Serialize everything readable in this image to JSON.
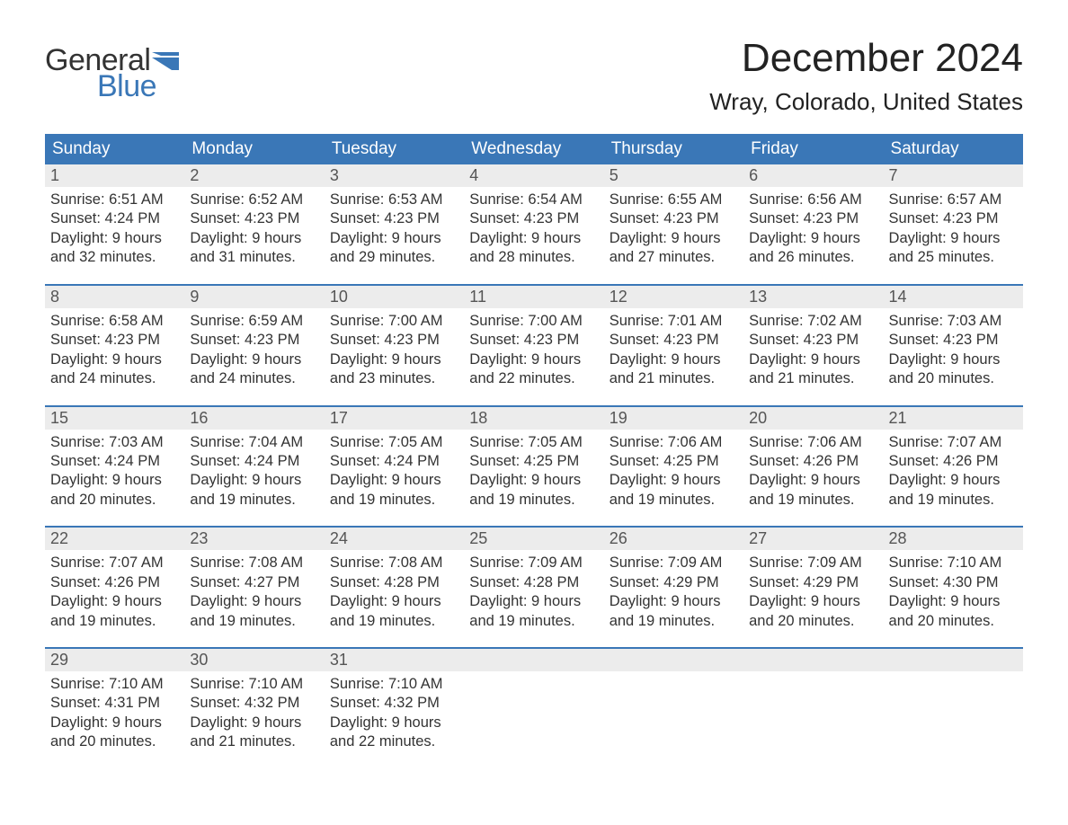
{
  "brand": {
    "word1": "General",
    "word2": "Blue",
    "accent_color": "#3a77b7"
  },
  "title": "December 2024",
  "location": "Wray, Colorado, United States",
  "colors": {
    "header_bg": "#3a77b7",
    "header_text": "#ffffff",
    "daynum_bg": "#ececec",
    "week_border": "#3a77b7",
    "text": "#333333",
    "background": "#ffffff"
  },
  "fonts": {
    "title_size": 44,
    "location_size": 26,
    "dayheader_size": 19,
    "body_size": 16.5
  },
  "day_labels": [
    "Sunday",
    "Monday",
    "Tuesday",
    "Wednesday",
    "Thursday",
    "Friday",
    "Saturday"
  ],
  "weeks": [
    [
      {
        "n": "1",
        "sr": "Sunrise: 6:51 AM",
        "ss": "Sunset: 4:24 PM",
        "d1": "Daylight: 9 hours",
        "d2": "and 32 minutes."
      },
      {
        "n": "2",
        "sr": "Sunrise: 6:52 AM",
        "ss": "Sunset: 4:23 PM",
        "d1": "Daylight: 9 hours",
        "d2": "and 31 minutes."
      },
      {
        "n": "3",
        "sr": "Sunrise: 6:53 AM",
        "ss": "Sunset: 4:23 PM",
        "d1": "Daylight: 9 hours",
        "d2": "and 29 minutes."
      },
      {
        "n": "4",
        "sr": "Sunrise: 6:54 AM",
        "ss": "Sunset: 4:23 PM",
        "d1": "Daylight: 9 hours",
        "d2": "and 28 minutes."
      },
      {
        "n": "5",
        "sr": "Sunrise: 6:55 AM",
        "ss": "Sunset: 4:23 PM",
        "d1": "Daylight: 9 hours",
        "d2": "and 27 minutes."
      },
      {
        "n": "6",
        "sr": "Sunrise: 6:56 AM",
        "ss": "Sunset: 4:23 PM",
        "d1": "Daylight: 9 hours",
        "d2": "and 26 minutes."
      },
      {
        "n": "7",
        "sr": "Sunrise: 6:57 AM",
        "ss": "Sunset: 4:23 PM",
        "d1": "Daylight: 9 hours",
        "d2": "and 25 minutes."
      }
    ],
    [
      {
        "n": "8",
        "sr": "Sunrise: 6:58 AM",
        "ss": "Sunset: 4:23 PM",
        "d1": "Daylight: 9 hours",
        "d2": "and 24 minutes."
      },
      {
        "n": "9",
        "sr": "Sunrise: 6:59 AM",
        "ss": "Sunset: 4:23 PM",
        "d1": "Daylight: 9 hours",
        "d2": "and 24 minutes."
      },
      {
        "n": "10",
        "sr": "Sunrise: 7:00 AM",
        "ss": "Sunset: 4:23 PM",
        "d1": "Daylight: 9 hours",
        "d2": "and 23 minutes."
      },
      {
        "n": "11",
        "sr": "Sunrise: 7:00 AM",
        "ss": "Sunset: 4:23 PM",
        "d1": "Daylight: 9 hours",
        "d2": "and 22 minutes."
      },
      {
        "n": "12",
        "sr": "Sunrise: 7:01 AM",
        "ss": "Sunset: 4:23 PM",
        "d1": "Daylight: 9 hours",
        "d2": "and 21 minutes."
      },
      {
        "n": "13",
        "sr": "Sunrise: 7:02 AM",
        "ss": "Sunset: 4:23 PM",
        "d1": "Daylight: 9 hours",
        "d2": "and 21 minutes."
      },
      {
        "n": "14",
        "sr": "Sunrise: 7:03 AM",
        "ss": "Sunset: 4:23 PM",
        "d1": "Daylight: 9 hours",
        "d2": "and 20 minutes."
      }
    ],
    [
      {
        "n": "15",
        "sr": "Sunrise: 7:03 AM",
        "ss": "Sunset: 4:24 PM",
        "d1": "Daylight: 9 hours",
        "d2": "and 20 minutes."
      },
      {
        "n": "16",
        "sr": "Sunrise: 7:04 AM",
        "ss": "Sunset: 4:24 PM",
        "d1": "Daylight: 9 hours",
        "d2": "and 19 minutes."
      },
      {
        "n": "17",
        "sr": "Sunrise: 7:05 AM",
        "ss": "Sunset: 4:24 PM",
        "d1": "Daylight: 9 hours",
        "d2": "and 19 minutes."
      },
      {
        "n": "18",
        "sr": "Sunrise: 7:05 AM",
        "ss": "Sunset: 4:25 PM",
        "d1": "Daylight: 9 hours",
        "d2": "and 19 minutes."
      },
      {
        "n": "19",
        "sr": "Sunrise: 7:06 AM",
        "ss": "Sunset: 4:25 PM",
        "d1": "Daylight: 9 hours",
        "d2": "and 19 minutes."
      },
      {
        "n": "20",
        "sr": "Sunrise: 7:06 AM",
        "ss": "Sunset: 4:26 PM",
        "d1": "Daylight: 9 hours",
        "d2": "and 19 minutes."
      },
      {
        "n": "21",
        "sr": "Sunrise: 7:07 AM",
        "ss": "Sunset: 4:26 PM",
        "d1": "Daylight: 9 hours",
        "d2": "and 19 minutes."
      }
    ],
    [
      {
        "n": "22",
        "sr": "Sunrise: 7:07 AM",
        "ss": "Sunset: 4:26 PM",
        "d1": "Daylight: 9 hours",
        "d2": "and 19 minutes."
      },
      {
        "n": "23",
        "sr": "Sunrise: 7:08 AM",
        "ss": "Sunset: 4:27 PM",
        "d1": "Daylight: 9 hours",
        "d2": "and 19 minutes."
      },
      {
        "n": "24",
        "sr": "Sunrise: 7:08 AM",
        "ss": "Sunset: 4:28 PM",
        "d1": "Daylight: 9 hours",
        "d2": "and 19 minutes."
      },
      {
        "n": "25",
        "sr": "Sunrise: 7:09 AM",
        "ss": "Sunset: 4:28 PM",
        "d1": "Daylight: 9 hours",
        "d2": "and 19 minutes."
      },
      {
        "n": "26",
        "sr": "Sunrise: 7:09 AM",
        "ss": "Sunset: 4:29 PM",
        "d1": "Daylight: 9 hours",
        "d2": "and 19 minutes."
      },
      {
        "n": "27",
        "sr": "Sunrise: 7:09 AM",
        "ss": "Sunset: 4:29 PM",
        "d1": "Daylight: 9 hours",
        "d2": "and 20 minutes."
      },
      {
        "n": "28",
        "sr": "Sunrise: 7:10 AM",
        "ss": "Sunset: 4:30 PM",
        "d1": "Daylight: 9 hours",
        "d2": "and 20 minutes."
      }
    ],
    [
      {
        "n": "29",
        "sr": "Sunrise: 7:10 AM",
        "ss": "Sunset: 4:31 PM",
        "d1": "Daylight: 9 hours",
        "d2": "and 20 minutes."
      },
      {
        "n": "30",
        "sr": "Sunrise: 7:10 AM",
        "ss": "Sunset: 4:32 PM",
        "d1": "Daylight: 9 hours",
        "d2": "and 21 minutes."
      },
      {
        "n": "31",
        "sr": "Sunrise: 7:10 AM",
        "ss": "Sunset: 4:32 PM",
        "d1": "Daylight: 9 hours",
        "d2": "and 22 minutes."
      },
      {
        "empty": true
      },
      {
        "empty": true
      },
      {
        "empty": true
      },
      {
        "empty": true
      }
    ]
  ]
}
